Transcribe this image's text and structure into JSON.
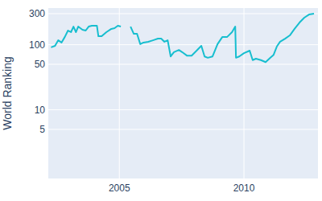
{
  "chart_data": {
    "type": "line",
    "y_label": "World Ranking",
    "log": "y",
    "grid": true,
    "color": "#17becf",
    "x": [
      2002.26,
      2002.42,
      2002.55,
      2002.68,
      2002.81,
      2002.94,
      2003.06,
      2003.16,
      2003.26,
      2003.35,
      2003.52,
      2003.65,
      2003.77,
      2003.9,
      2004.1,
      2004.16,
      2004.29,
      2004.48,
      2004.68,
      2004.81,
      2004.94,
      2005.06,
      2005.3,
      2005.45,
      2005.58,
      2005.71,
      2005.84,
      2005.97,
      2006.16,
      2006.35,
      2006.55,
      2006.68,
      2006.81,
      2006.94,
      2007.06,
      2007.19,
      2007.39,
      2007.52,
      2007.71,
      2007.9,
      2008.1,
      2008.29,
      2008.42,
      2008.55,
      2008.74,
      2008.94,
      2009.13,
      2009.32,
      2009.52,
      2009.65,
      2009.68,
      2009.81,
      2010.0,
      2010.23,
      2010.35,
      2010.48,
      2010.68,
      2010.87,
      2011.06,
      2011.19,
      2011.32,
      2011.45,
      2011.65,
      2011.84,
      2012.03,
      2012.23,
      2012.42,
      2012.61,
      2012.81
    ],
    "values": [
      91,
      96,
      117,
      108,
      131,
      165,
      156,
      190,
      156,
      190,
      170,
      165,
      190,
      196,
      196,
      135,
      135,
      156,
      175,
      180,
      196,
      190,
      null,
      190,
      147,
      147,
      102,
      108,
      111,
      117,
      124,
      124,
      111,
      117,
      66,
      77,
      83,
      77,
      68,
      68,
      81,
      96,
      66,
      63,
      66,
      102,
      131,
      131,
      156,
      190,
      63,
      66,
      74,
      81,
      58,
      61,
      58,
      54,
      63,
      70,
      94,
      111,
      124,
      139,
      175,
      219,
      260,
      291,
      300
    ],
    "xlim": [
      2002.15,
      2012.97
    ],
    "ylim": [
      0.88,
      366
    ],
    "xticks": [
      2005,
      2010
    ],
    "yticks": [
      5,
      10,
      50,
      100,
      300
    ]
  }
}
